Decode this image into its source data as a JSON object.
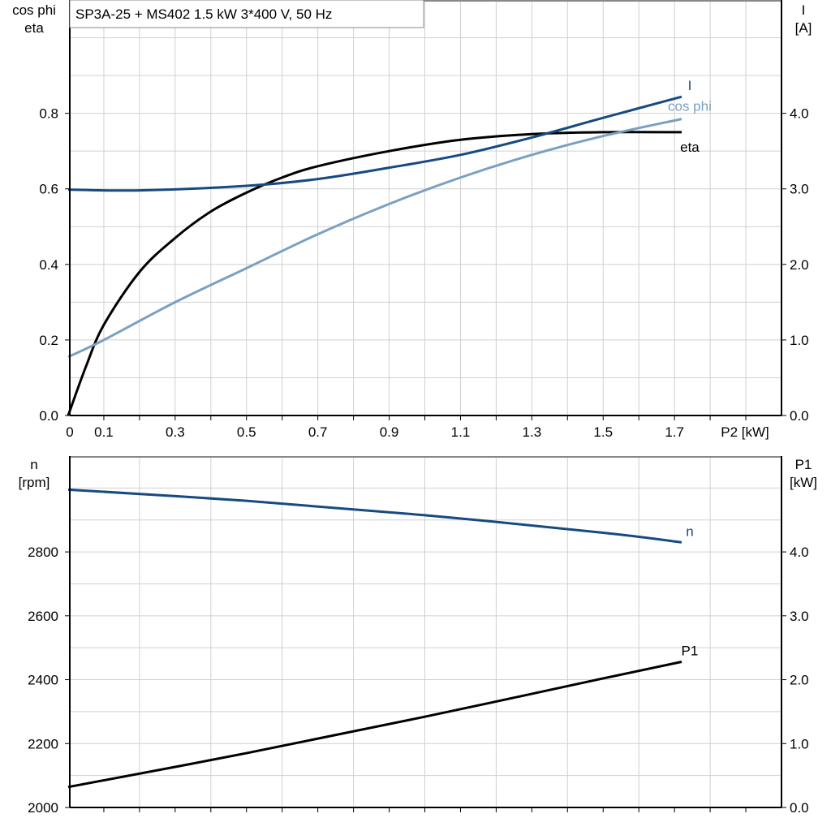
{
  "title": "SP3A-25 + MS402   1.5 kW   3*400 V, 50 Hz",
  "colors": {
    "eta": "#000000",
    "I": "#164a82",
    "cos_phi": "#7aa0c2",
    "n": "#164a82",
    "P1": "#000000",
    "grid": "#d0d0d0"
  },
  "chart_data": [
    {
      "type": "line",
      "xlabel": "P2 [kW]",
      "ylabel_left": [
        "cos phi",
        "eta"
      ],
      "ylabel_right": [
        "I",
        "[A]"
      ],
      "xlim": [
        0,
        2.0
      ],
      "ylim_left": [
        0,
        1.1
      ],
      "ylim_right": [
        0,
        5.5
      ],
      "x_ticks": [
        "0",
        "0.1",
        "0.3",
        "0.5",
        "0.7",
        "0.9",
        "1.1",
        "1.3",
        "1.5",
        "1.7"
      ],
      "y_ticks_left": [
        "0.0",
        "0.2",
        "0.4",
        "0.6",
        "0.8"
      ],
      "y_ticks_right": [
        "0.0",
        "1.0",
        "2.0",
        "3.0",
        "4.0"
      ],
      "grid": true,
      "series": [
        {
          "name": "eta",
          "axis": "left",
          "x": [
            0,
            0.05,
            0.1,
            0.2,
            0.3,
            0.4,
            0.5,
            0.6,
            0.7,
            0.9,
            1.1,
            1.3,
            1.5,
            1.72
          ],
          "y": [
            0,
            0.13,
            0.24,
            0.38,
            0.47,
            0.54,
            0.59,
            0.63,
            0.66,
            0.7,
            0.73,
            0.745,
            0.75,
            0.75
          ]
        },
        {
          "name": "I",
          "axis": "right",
          "x": [
            0,
            0.2,
            0.5,
            0.7,
            0.9,
            1.1,
            1.3,
            1.5,
            1.72
          ],
          "y": [
            2.99,
            2.98,
            3.04,
            3.13,
            3.28,
            3.45,
            3.68,
            3.94,
            4.22
          ]
        },
        {
          "name": "cos phi",
          "axis": "left",
          "x": [
            0,
            0.1,
            0.3,
            0.5,
            0.7,
            0.9,
            1.1,
            1.3,
            1.5,
            1.72
          ],
          "y": [
            0.155,
            0.2,
            0.3,
            0.39,
            0.48,
            0.56,
            0.63,
            0.69,
            0.74,
            0.785
          ]
        }
      ]
    },
    {
      "type": "line",
      "ylabel_left": [
        "n",
        "[rpm]"
      ],
      "ylabel_right": [
        "P1",
        "[kW]"
      ],
      "xlim": [
        0,
        2.0
      ],
      "ylim_left": [
        2000,
        3100
      ],
      "ylim_right": [
        0,
        5.5
      ],
      "y_ticks_left": [
        "2000",
        "2200",
        "2400",
        "2600",
        "2800"
      ],
      "y_ticks_right": [
        "0.0",
        "1.0",
        "2.0",
        "3.0",
        "4.0"
      ],
      "grid": true,
      "series": [
        {
          "name": "n",
          "axis": "left",
          "x": [
            0,
            0.5,
            1.0,
            1.5,
            1.72
          ],
          "y": [
            2995,
            2960,
            2915,
            2860,
            2830
          ]
        },
        {
          "name": "P1",
          "axis": "right",
          "x": [
            0,
            0.5,
            1.0,
            1.5,
            1.72
          ],
          "y": [
            0.32,
            0.85,
            1.42,
            2.02,
            2.28
          ]
        }
      ]
    }
  ]
}
